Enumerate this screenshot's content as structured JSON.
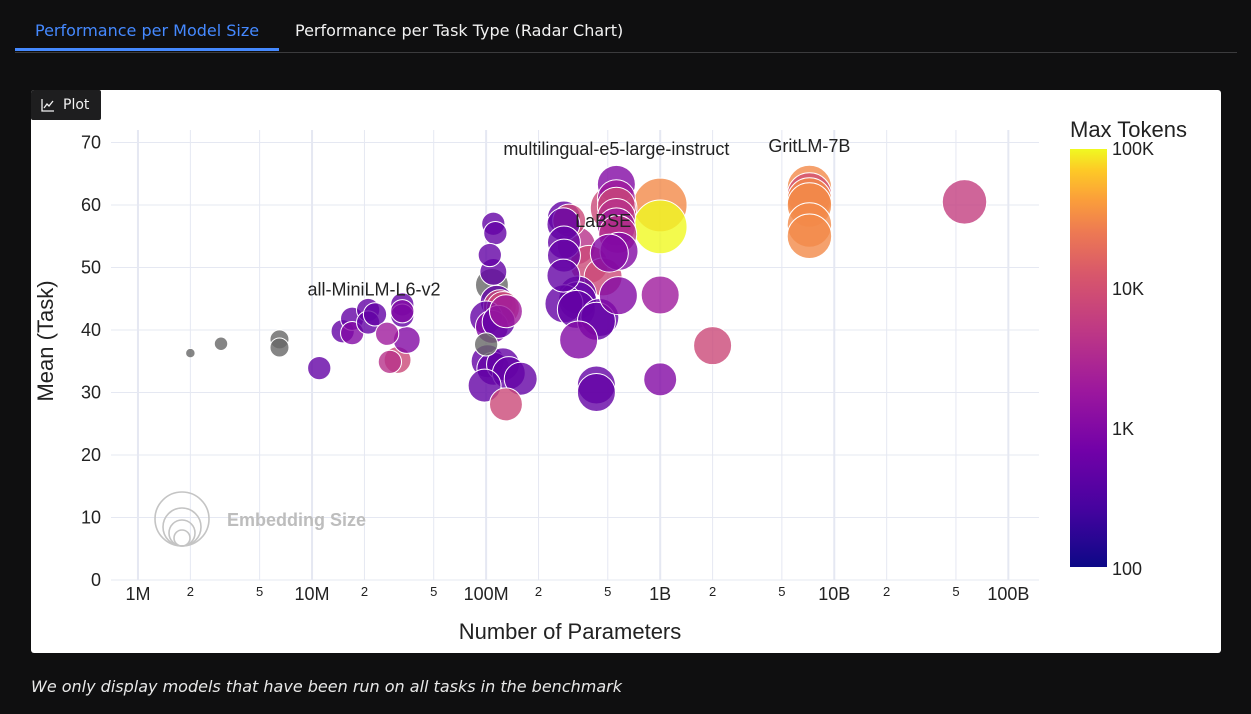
{
  "tabs": [
    {
      "label": "Performance per Model Size",
      "active": true
    },
    {
      "label": "Performance per Task Type (Radar Chart)",
      "active": false
    }
  ],
  "plot_button": {
    "label": "Plot",
    "icon": "chart-icon"
  },
  "footnote": "We only display models that have been run on all tasks in the benchmark",
  "chart_data": {
    "type": "scatter",
    "xlabel": "Number of Parameters",
    "ylabel": "Mean (Task)",
    "x_scale": "log",
    "xlim": [
      700000,
      150000000000
    ],
    "ylim": [
      0,
      72
    ],
    "x_major_ticks": [
      {
        "value": 1000000,
        "label": "1M"
      },
      {
        "value": 10000000,
        "label": "10M"
      },
      {
        "value": 100000000,
        "label": "100M"
      },
      {
        "value": 1000000000,
        "label": "1B"
      },
      {
        "value": 10000000000,
        "label": "10B"
      },
      {
        "value": 100000000000,
        "label": "100B"
      }
    ],
    "x_minor_ticks": [
      {
        "value": 2000000,
        "label": "2"
      },
      {
        "value": 5000000,
        "label": "5"
      },
      {
        "value": 20000000,
        "label": "2"
      },
      {
        "value": 50000000,
        "label": "5"
      },
      {
        "value": 200000000,
        "label": "2"
      },
      {
        "value": 500000000,
        "label": "5"
      },
      {
        "value": 2000000000,
        "label": "2"
      },
      {
        "value": 5000000000,
        "label": "5"
      },
      {
        "value": 20000000000,
        "label": "2"
      },
      {
        "value": 50000000000,
        "label": "5"
      }
    ],
    "y_ticks": [
      0,
      10,
      20,
      30,
      40,
      50,
      60,
      70
    ],
    "grid": true,
    "colorbar": {
      "title": "Max Tokens",
      "scale": "log",
      "ticks": [
        "100K",
        "10K",
        "1K",
        "100"
      ],
      "range": [
        100,
        100000
      ]
    },
    "size_legend": {
      "label": "Embedding Size"
    },
    "colors": {
      "no_tokens": "#666666",
      "grid": "#e5e8f2"
    },
    "annotations": [
      {
        "text": "multilingual-e5-large-instruct",
        "x": 560000000,
        "y": 68
      },
      {
        "text": "GritLM-7B",
        "x": 7200000000,
        "y": 68.5
      },
      {
        "text": "LaBSE",
        "x": 470000000,
        "y": 56.5
      },
      {
        "text": "all-MiniLM-L6-v2",
        "x": 22700000,
        "y": 45.5
      }
    ],
    "points": [
      {
        "x": 2000000,
        "y": 36.3,
        "tokens": null,
        "dim": 64
      },
      {
        "x": 3000000,
        "y": 37.8,
        "tokens": null,
        "dim": 128
      },
      {
        "x": 6500000,
        "y": 38.5,
        "tokens": null,
        "dim": 256
      },
      {
        "x": 6500000,
        "y": 37.2,
        "tokens": null,
        "dim": 256
      },
      {
        "x": 11000000,
        "y": 33.9,
        "tokens": 512,
        "dim": 384
      },
      {
        "x": 15000000,
        "y": 39.8,
        "tokens": 512,
        "dim": 384
      },
      {
        "x": 17000000,
        "y": 41.8,
        "tokens": 512,
        "dim": 384
      },
      {
        "x": 17000000,
        "y": 39.5,
        "tokens": 1000,
        "dim": 384
      },
      {
        "x": 21000000,
        "y": 43.2,
        "tokens": 512,
        "dim": 384
      },
      {
        "x": 21000000,
        "y": 41.2,
        "tokens": 512,
        "dim": 384
      },
      {
        "x": 23000000,
        "y": 42.5,
        "tokens": 512,
        "dim": 384
      },
      {
        "x": 27000000,
        "y": 39.4,
        "tokens": 2000,
        "dim": 384
      },
      {
        "x": 28000000,
        "y": 34.9,
        "tokens": 4000,
        "dim": 384
      },
      {
        "x": 31000000,
        "y": 35.2,
        "tokens": 8000,
        "dim": 512
      },
      {
        "x": 33000000,
        "y": 44.1,
        "tokens": 512,
        "dim": 384
      },
      {
        "x": 33000000,
        "y": 42.3,
        "tokens": 512,
        "dim": 384
      },
      {
        "x": 33000000,
        "y": 43.0,
        "tokens": 1000,
        "dim": 384
      },
      {
        "x": 35000000,
        "y": 38.4,
        "tokens": 1000,
        "dim": 512
      },
      {
        "x": 100000000,
        "y": 37.7,
        "tokens": null,
        "dim": 384
      },
      {
        "x": 108000000,
        "y": 47.2,
        "tokens": null,
        "dim": 768
      },
      {
        "x": 110000000,
        "y": 57.0,
        "tokens": 512,
        "dim": 384
      },
      {
        "x": 113000000,
        "y": 55.5,
        "tokens": 512,
        "dim": 384
      },
      {
        "x": 105000000,
        "y": 52.0,
        "tokens": 512,
        "dim": 384
      },
      {
        "x": 110000000,
        "y": 49.3,
        "tokens": 512,
        "dim": 512
      },
      {
        "x": 115000000,
        "y": 44.5,
        "tokens": 512,
        "dim": 768
      },
      {
        "x": 120000000,
        "y": 43.8,
        "tokens": 8000,
        "dim": 768
      },
      {
        "x": 125000000,
        "y": 43.5,
        "tokens": 8000,
        "dim": 768
      },
      {
        "x": 100000000,
        "y": 42.0,
        "tokens": 512,
        "dim": 768
      },
      {
        "x": 108000000,
        "y": 40.5,
        "tokens": 1000,
        "dim": 768
      },
      {
        "x": 118000000,
        "y": 41.3,
        "tokens": 512,
        "dim": 768
      },
      {
        "x": 130000000,
        "y": 43.0,
        "tokens": 2000,
        "dim": 768
      },
      {
        "x": 102000000,
        "y": 35.0,
        "tokens": 512,
        "dim": 768
      },
      {
        "x": 110000000,
        "y": 33.8,
        "tokens": 512,
        "dim": 768
      },
      {
        "x": 125000000,
        "y": 34.5,
        "tokens": 512,
        "dim": 768
      },
      {
        "x": 135000000,
        "y": 33.1,
        "tokens": 512,
        "dim": 768
      },
      {
        "x": 158000000,
        "y": 32.2,
        "tokens": 512,
        "dim": 768
      },
      {
        "x": 98000000,
        "y": 31.1,
        "tokens": 512,
        "dim": 768
      },
      {
        "x": 130000000,
        "y": 28.1,
        "tokens": 8000,
        "dim": 768
      },
      {
        "x": 280000000,
        "y": 58.0,
        "tokens": 512,
        "dim": 768
      },
      {
        "x": 300000000,
        "y": 57.5,
        "tokens": 8000,
        "dim": 768
      },
      {
        "x": 278000000,
        "y": 56.9,
        "tokens": 512,
        "dim": 768
      },
      {
        "x": 280000000,
        "y": 54.0,
        "tokens": 512,
        "dim": 768
      },
      {
        "x": 330000000,
        "y": 53.5,
        "tokens": 4000,
        "dim": 1024
      },
      {
        "x": 280000000,
        "y": 51.9,
        "tokens": 512,
        "dim": 768
      },
      {
        "x": 278000000,
        "y": 48.7,
        "tokens": 512,
        "dim": 768
      },
      {
        "x": 390000000,
        "y": 50.5,
        "tokens": 8000,
        "dim": 1024
      },
      {
        "x": 470000000,
        "y": 48.5,
        "tokens": 8000,
        "dim": 1024
      },
      {
        "x": 335000000,
        "y": 45.6,
        "tokens": 512,
        "dim": 1024
      },
      {
        "x": 335000000,
        "y": 44.7,
        "tokens": 512,
        "dim": 1024
      },
      {
        "x": 280000000,
        "y": 44.2,
        "tokens": 512,
        "dim": 1024
      },
      {
        "x": 330000000,
        "y": 43.3,
        "tokens": 512,
        "dim": 1024
      },
      {
        "x": 450000000,
        "y": 42.0,
        "tokens": 512,
        "dim": 1024
      },
      {
        "x": 430000000,
        "y": 41.4,
        "tokens": 512,
        "dim": 1024
      },
      {
        "x": 340000000,
        "y": 38.4,
        "tokens": 1000,
        "dim": 1024
      },
      {
        "x": 560000000,
        "y": 63.3,
        "tokens": 1000,
        "dim": 1024
      },
      {
        "x": 560000000,
        "y": 61.0,
        "tokens": 2000,
        "dim": 1024
      },
      {
        "x": 560000000,
        "y": 59.8,
        "tokens": 8000,
        "dim": 1024
      },
      {
        "x": 560000000,
        "y": 58.0,
        "tokens": 4000,
        "dim": 1024
      },
      {
        "x": 560000000,
        "y": 56.5,
        "tokens": 2000,
        "dim": 1024
      },
      {
        "x": 570000000,
        "y": 55.3,
        "tokens": 4000,
        "dim": 1024
      },
      {
        "x": 580000000,
        "y": 52.6,
        "tokens": 1000,
        "dim": 1024
      },
      {
        "x": 510000000,
        "y": 52.3,
        "tokens": 1000,
        "dim": 1024
      },
      {
        "x": 575000000,
        "y": 45.5,
        "tokens": 1000,
        "dim": 1024
      },
      {
        "x": 430000000,
        "y": 31.2,
        "tokens": 512,
        "dim": 1024
      },
      {
        "x": 430000000,
        "y": 30.0,
        "tokens": 512,
        "dim": 1024
      },
      {
        "x": 540000000,
        "y": 59.5,
        "tokens": 8000,
        "dim": 1536
      },
      {
        "x": 1000000000,
        "y": 60.0,
        "tokens": 32000,
        "dim": 2048
      },
      {
        "x": 1000000000,
        "y": 56.5,
        "tokens": 100000,
        "dim": 2048
      },
      {
        "x": 1000000000,
        "y": 45.6,
        "tokens": 2000,
        "dim": 1024
      },
      {
        "x": 1000000000,
        "y": 32.1,
        "tokens": 1000,
        "dim": 768
      },
      {
        "x": 2000000000,
        "y": 37.5,
        "tokens": 8000,
        "dim": 1024
      },
      {
        "x": 7200000000,
        "y": 62.8,
        "tokens": 32000,
        "dim": 1400
      },
      {
        "x": 7200000000,
        "y": 61.6,
        "tokens": 10000,
        "dim": 1400
      },
      {
        "x": 7200000000,
        "y": 60.8,
        "tokens": 32000,
        "dim": 1400
      },
      {
        "x": 7200000000,
        "y": 60.0,
        "tokens": 32000,
        "dim": 1400
      },
      {
        "x": 7200000000,
        "y": 56.8,
        "tokens": 32000,
        "dim": 1400
      },
      {
        "x": 7200000000,
        "y": 55.0,
        "tokens": 32000,
        "dim": 1400
      },
      {
        "x": 56000000000,
        "y": 60.5,
        "tokens": 6000,
        "dim": 1400
      }
    ]
  }
}
